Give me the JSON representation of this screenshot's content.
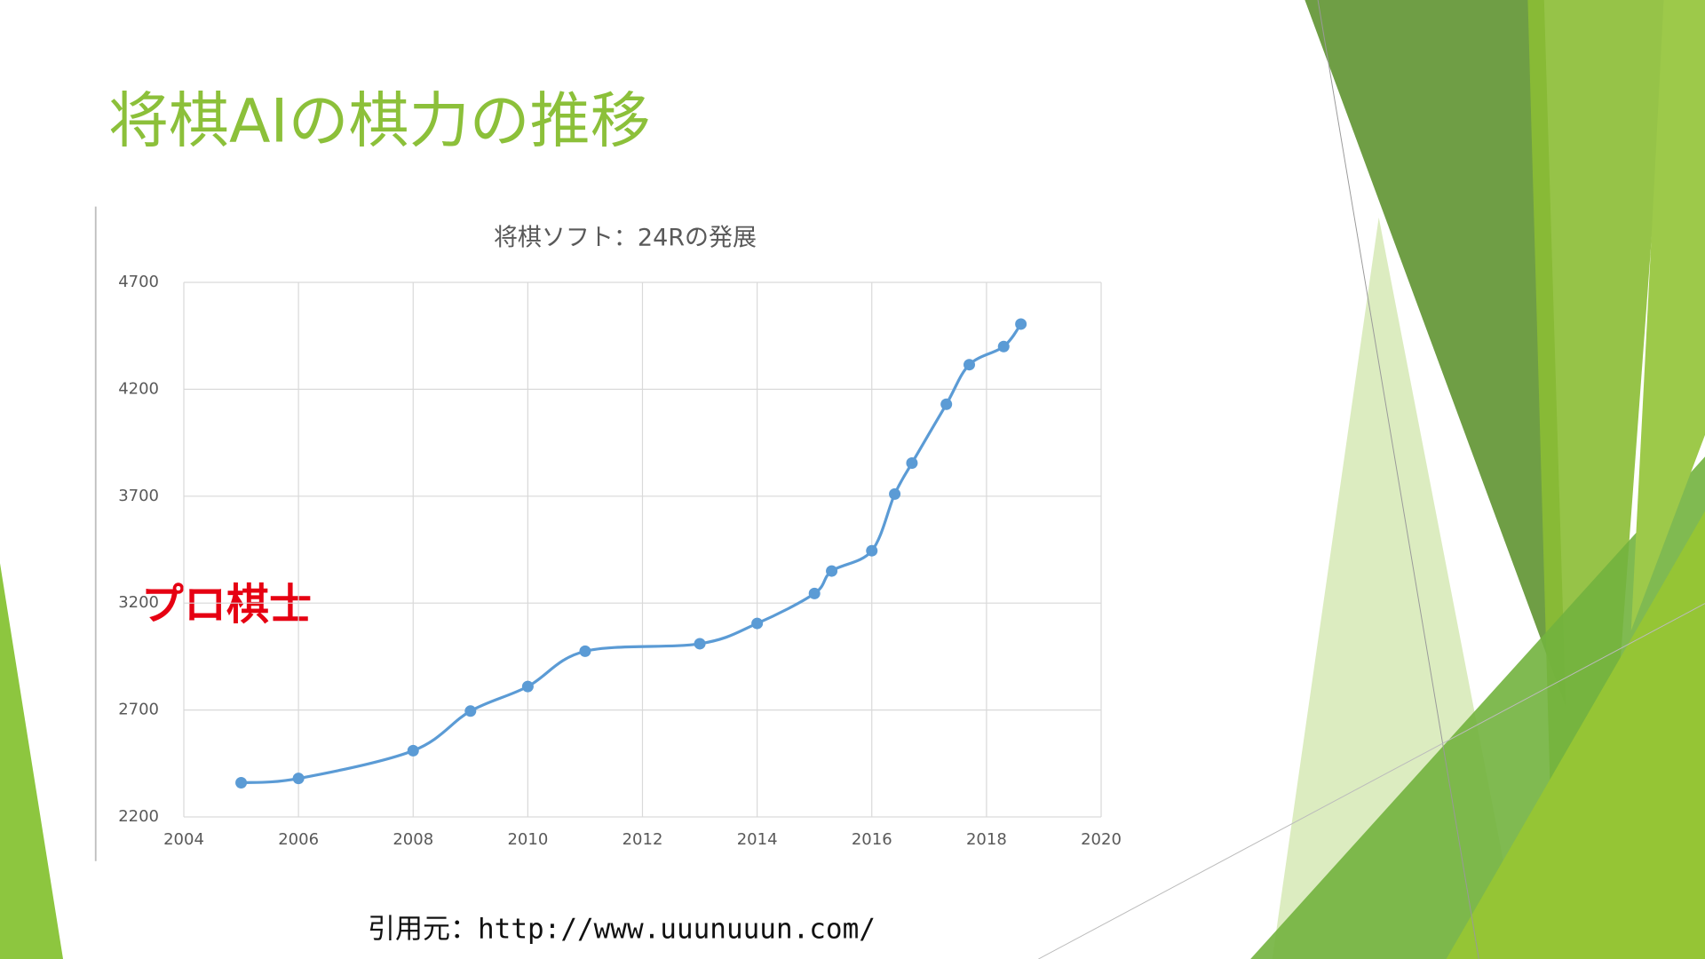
{
  "title": "将棋AIの棋力の推移",
  "citation": "引用元：http://www.uuunuuun.com/",
  "chart_data": {
    "type": "line",
    "title": "将棋ソフト：24Rの発展",
    "annotation": "プロ棋士",
    "x": [
      2005,
      2006,
      2008,
      2009,
      2010,
      2011,
      2013,
      2014,
      2015,
      2015.3,
      2016,
      2016.4,
      2016.7,
      2017.3,
      2017.7,
      2018.3,
      2018.6
    ],
    "series": [
      {
        "name": "24R",
        "color": "#5b9bd5",
        "values": [
          2360,
          2380,
          2510,
          2695,
          2810,
          2975,
          3010,
          3105,
          3245,
          3350,
          3445,
          3710,
          3855,
          4130,
          4315,
          4400,
          4505
        ]
      }
    ],
    "xlim": [
      2004,
      2020
    ],
    "xticks": [
      2004,
      2006,
      2008,
      2010,
      2012,
      2014,
      2016,
      2018,
      2020
    ],
    "ylim": [
      2200,
      4700
    ],
    "yticks": [
      2200,
      2700,
      3200,
      3700,
      4200,
      4700
    ],
    "grid": true
  }
}
